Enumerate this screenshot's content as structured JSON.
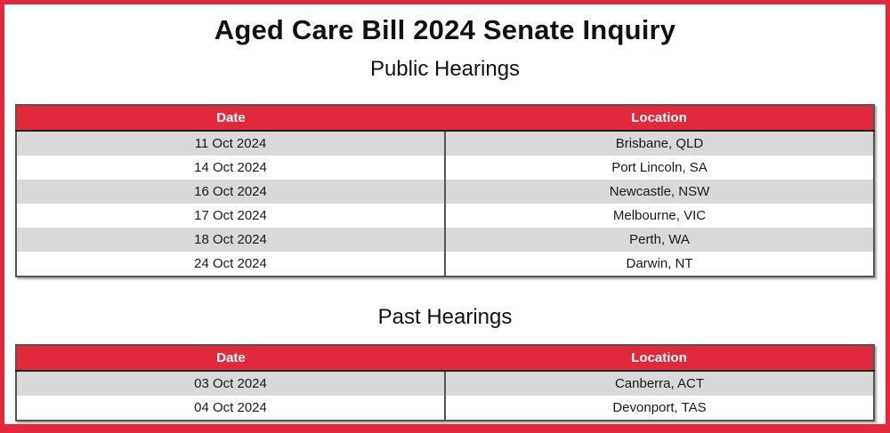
{
  "page_title": "Aged Care Bill 2024 Senate Inquiry",
  "colors": {
    "accent_red": "#E2293B",
    "header_text": "#ffffff",
    "row_alt_gray": "#D9D9D9",
    "table_border": "#555555",
    "text": "#1a1a1a"
  },
  "sections": [
    {
      "heading": "Public Hearings",
      "table": {
        "headers": [
          "Date",
          "Location"
        ],
        "rows": [
          [
            "11 Oct 2024",
            "Brisbane, QLD"
          ],
          [
            "14 Oct 2024",
            "Port Lincoln, SA"
          ],
          [
            "16 Oct 2024",
            "Newcastle, NSW"
          ],
          [
            "17 Oct 2024",
            "Melbourne, VIC"
          ],
          [
            "18 Oct 2024",
            "Perth, WA"
          ],
          [
            "24 Oct 2024",
            "Darwin, NT"
          ]
        ]
      }
    },
    {
      "heading": "Past Hearings",
      "table": {
        "headers": [
          "Date",
          "Location"
        ],
        "rows": [
          [
            "03 Oct 2024",
            "Canberra, ACT"
          ],
          [
            "04 Oct 2024",
            "Devonport, TAS"
          ]
        ]
      }
    }
  ]
}
